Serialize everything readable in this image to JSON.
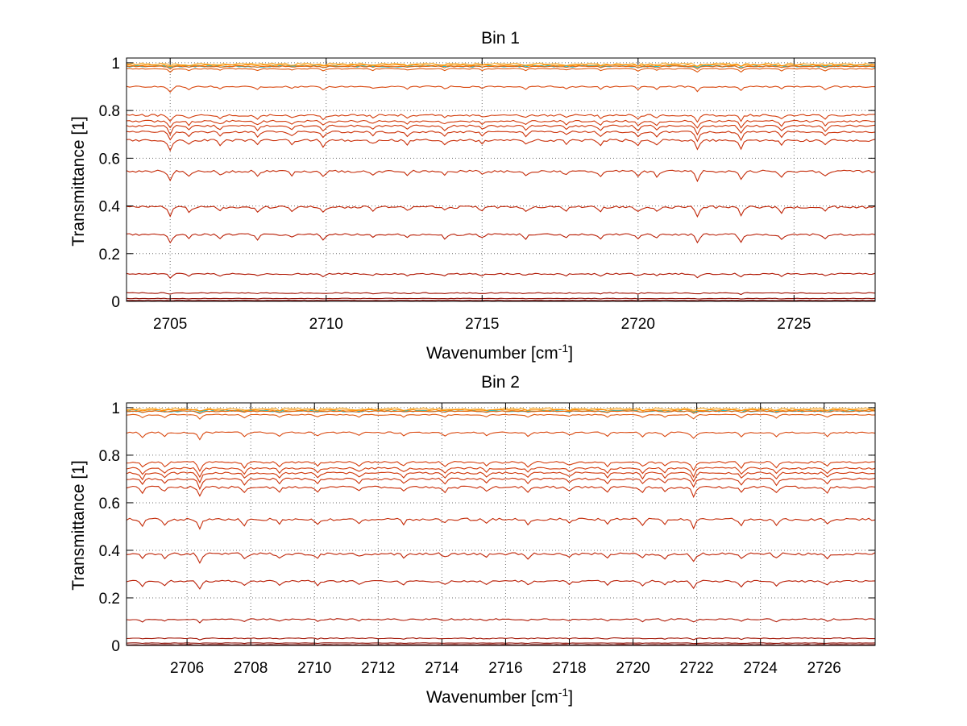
{
  "figure_background": "#ffffff",
  "chart_data": [
    {
      "type": "line",
      "title": "Bin 1",
      "xlabel": "Wavenumber [cm",
      "xlabel_sup": "-1",
      "xlabel_end": "]",
      "ylabel": "Transmittance [1]",
      "xlim": [
        2703.6,
        2727.6
      ],
      "ylim": [
        0,
        1.02
      ],
      "xticks": [
        2705,
        2710,
        2715,
        2720,
        2725
      ],
      "xtick_labels": [
        "2705",
        "2710",
        "2715",
        "2720",
        "2725"
      ],
      "yticks": [
        0,
        0.2,
        0.4,
        0.6,
        0.8,
        1
      ],
      "ytick_labels": [
        "0",
        "0.2",
        "0.4",
        "0.6",
        "0.8",
        "1"
      ],
      "grid": "dotted",
      "x_start": 2703.6,
      "x_step": 0.1,
      "absorption_lines": [
        {
          "x": 2705.0,
          "strength": 1.0
        },
        {
          "x": 2705.6,
          "strength": 0.5
        },
        {
          "x": 2706.6,
          "strength": 0.45
        },
        {
          "x": 2707.8,
          "strength": 0.55
        },
        {
          "x": 2708.9,
          "strength": 0.4
        },
        {
          "x": 2709.9,
          "strength": 0.6
        },
        {
          "x": 2711.5,
          "strength": 0.4
        },
        {
          "x": 2712.6,
          "strength": 0.45
        },
        {
          "x": 2713.8,
          "strength": 0.45
        },
        {
          "x": 2715.0,
          "strength": 0.4
        },
        {
          "x": 2716.4,
          "strength": 0.5
        },
        {
          "x": 2717.7,
          "strength": 0.4
        },
        {
          "x": 2718.8,
          "strength": 0.45
        },
        {
          "x": 2720.0,
          "strength": 0.6
        },
        {
          "x": 2720.6,
          "strength": 0.5
        },
        {
          "x": 2721.9,
          "strength": 1.0
        },
        {
          "x": 2723.3,
          "strength": 0.9
        },
        {
          "x": 2724.6,
          "strength": 0.6
        },
        {
          "x": 2726.0,
          "strength": 0.55
        }
      ],
      "series": [
        {
          "baseline": 0.995,
          "color": "#f5a623",
          "noise": 0.004,
          "depth": 0.01
        },
        {
          "baseline": 0.99,
          "color": "#ff8c00",
          "noise": 0.002,
          "depth": 0.005
        },
        {
          "baseline": 0.985,
          "color": "#17becf",
          "noise": 0.003,
          "depth": 0.005
        },
        {
          "baseline": 0.985,
          "color": "#e8640c",
          "noise": 0.002,
          "depth": 0.01
        },
        {
          "baseline": 0.975,
          "color": "#e05a10",
          "noise": 0.002,
          "depth": 0.015
        },
        {
          "baseline": 0.9,
          "color": "#d9480f",
          "noise": 0.003,
          "depth": 0.02
        },
        {
          "baseline": 0.78,
          "color": "#d43d0c",
          "noise": 0.004,
          "depth": 0.025
        },
        {
          "baseline": 0.755,
          "color": "#d23a0b",
          "noise": 0.004,
          "depth": 0.03
        },
        {
          "baseline": 0.735,
          "color": "#cf370a",
          "noise": 0.004,
          "depth": 0.035
        },
        {
          "baseline": 0.71,
          "color": "#cc3209",
          "noise": 0.004,
          "depth": 0.035
        },
        {
          "baseline": 0.675,
          "color": "#c92e08",
          "noise": 0.005,
          "depth": 0.04
        },
        {
          "baseline": 0.545,
          "color": "#c42a07",
          "noise": 0.005,
          "depth": 0.04
        },
        {
          "baseline": 0.395,
          "color": "#bf2406",
          "noise": 0.005,
          "depth": 0.035
        },
        {
          "baseline": 0.28,
          "color": "#b91e05",
          "noise": 0.004,
          "depth": 0.035
        },
        {
          "baseline": 0.115,
          "color": "#b01804",
          "noise": 0.003,
          "depth": 0.015
        },
        {
          "baseline": 0.035,
          "color": "#a01202",
          "noise": 0.002,
          "depth": 0.005
        },
        {
          "baseline": 0.012,
          "color": "#8b0a00",
          "noise": 0.001,
          "depth": 0.002
        },
        {
          "baseline": 0.004,
          "color": "#7a0500",
          "noise": 0.001,
          "depth": 0.001
        }
      ]
    },
    {
      "type": "line",
      "title": "Bin 2",
      "xlabel": "Wavenumber [cm",
      "xlabel_sup": "-1",
      "xlabel_end": "]",
      "ylabel": "Transmittance [1]",
      "xlim": [
        2704.1,
        2727.6
      ],
      "ylim": [
        0,
        1.02
      ],
      "xticks": [
        2706,
        2708,
        2710,
        2712,
        2714,
        2716,
        2718,
        2720,
        2722,
        2724,
        2726
      ],
      "xtick_labels": [
        "2706",
        "2708",
        "2710",
        "2712",
        "2714",
        "2716",
        "2718",
        "2720",
        "2722",
        "2724",
        "2726"
      ],
      "yticks": [
        0,
        0.2,
        0.4,
        0.6,
        0.8,
        1
      ],
      "ytick_labels": [
        "0",
        "0.2",
        "0.4",
        "0.6",
        "0.8",
        "1"
      ],
      "grid": "dotted",
      "x_start": 2704.1,
      "x_step": 0.1,
      "absorption_lines": [
        {
          "x": 2704.6,
          "strength": 0.6
        },
        {
          "x": 2705.3,
          "strength": 0.5
        },
        {
          "x": 2706.4,
          "strength": 1.0
        },
        {
          "x": 2707.8,
          "strength": 0.6
        },
        {
          "x": 2708.9,
          "strength": 0.45
        },
        {
          "x": 2710.1,
          "strength": 0.5
        },
        {
          "x": 2711.4,
          "strength": 0.4
        },
        {
          "x": 2712.8,
          "strength": 0.45
        },
        {
          "x": 2714.1,
          "strength": 0.45
        },
        {
          "x": 2715.4,
          "strength": 0.4
        },
        {
          "x": 2716.7,
          "strength": 0.5
        },
        {
          "x": 2718.0,
          "strength": 0.4
        },
        {
          "x": 2719.2,
          "strength": 0.45
        },
        {
          "x": 2720.3,
          "strength": 0.55
        },
        {
          "x": 2721.0,
          "strength": 0.5
        },
        {
          "x": 2721.9,
          "strength": 0.9
        },
        {
          "x": 2723.4,
          "strength": 0.6
        },
        {
          "x": 2724.5,
          "strength": 0.6
        },
        {
          "x": 2726.1,
          "strength": 0.5
        }
      ],
      "series": [
        {
          "baseline": 0.995,
          "color": "#f5a623",
          "noise": 0.004,
          "depth": 0.01
        },
        {
          "baseline": 0.99,
          "color": "#ff8c00",
          "noise": 0.002,
          "depth": 0.005
        },
        {
          "baseline": 0.985,
          "color": "#17becf",
          "noise": 0.003,
          "depth": 0.005
        },
        {
          "baseline": 0.985,
          "color": "#e8640c",
          "noise": 0.002,
          "depth": 0.01
        },
        {
          "baseline": 0.97,
          "color": "#e05a10",
          "noise": 0.002,
          "depth": 0.02
        },
        {
          "baseline": 0.895,
          "color": "#d9480f",
          "noise": 0.003,
          "depth": 0.03
        },
        {
          "baseline": 0.77,
          "color": "#d43d0c",
          "noise": 0.004,
          "depth": 0.035
        },
        {
          "baseline": 0.745,
          "color": "#d23a0b",
          "noise": 0.004,
          "depth": 0.04
        },
        {
          "baseline": 0.725,
          "color": "#cf370a",
          "noise": 0.004,
          "depth": 0.04
        },
        {
          "baseline": 0.7,
          "color": "#cc3209",
          "noise": 0.004,
          "depth": 0.04
        },
        {
          "baseline": 0.665,
          "color": "#c92e08",
          "noise": 0.005,
          "depth": 0.04
        },
        {
          "baseline": 0.53,
          "color": "#c42a07",
          "noise": 0.005,
          "depth": 0.04
        },
        {
          "baseline": 0.385,
          "color": "#bf2406",
          "noise": 0.005,
          "depth": 0.035
        },
        {
          "baseline": 0.27,
          "color": "#b91e05",
          "noise": 0.004,
          "depth": 0.035
        },
        {
          "baseline": 0.11,
          "color": "#b01804",
          "noise": 0.003,
          "depth": 0.015
        },
        {
          "baseline": 0.03,
          "color": "#a01202",
          "noise": 0.002,
          "depth": 0.005
        },
        {
          "baseline": 0.01,
          "color": "#8b0a00",
          "noise": 0.001,
          "depth": 0.002
        },
        {
          "baseline": 0.003,
          "color": "#7a0500",
          "noise": 0.001,
          "depth": 0.001
        }
      ]
    }
  ]
}
